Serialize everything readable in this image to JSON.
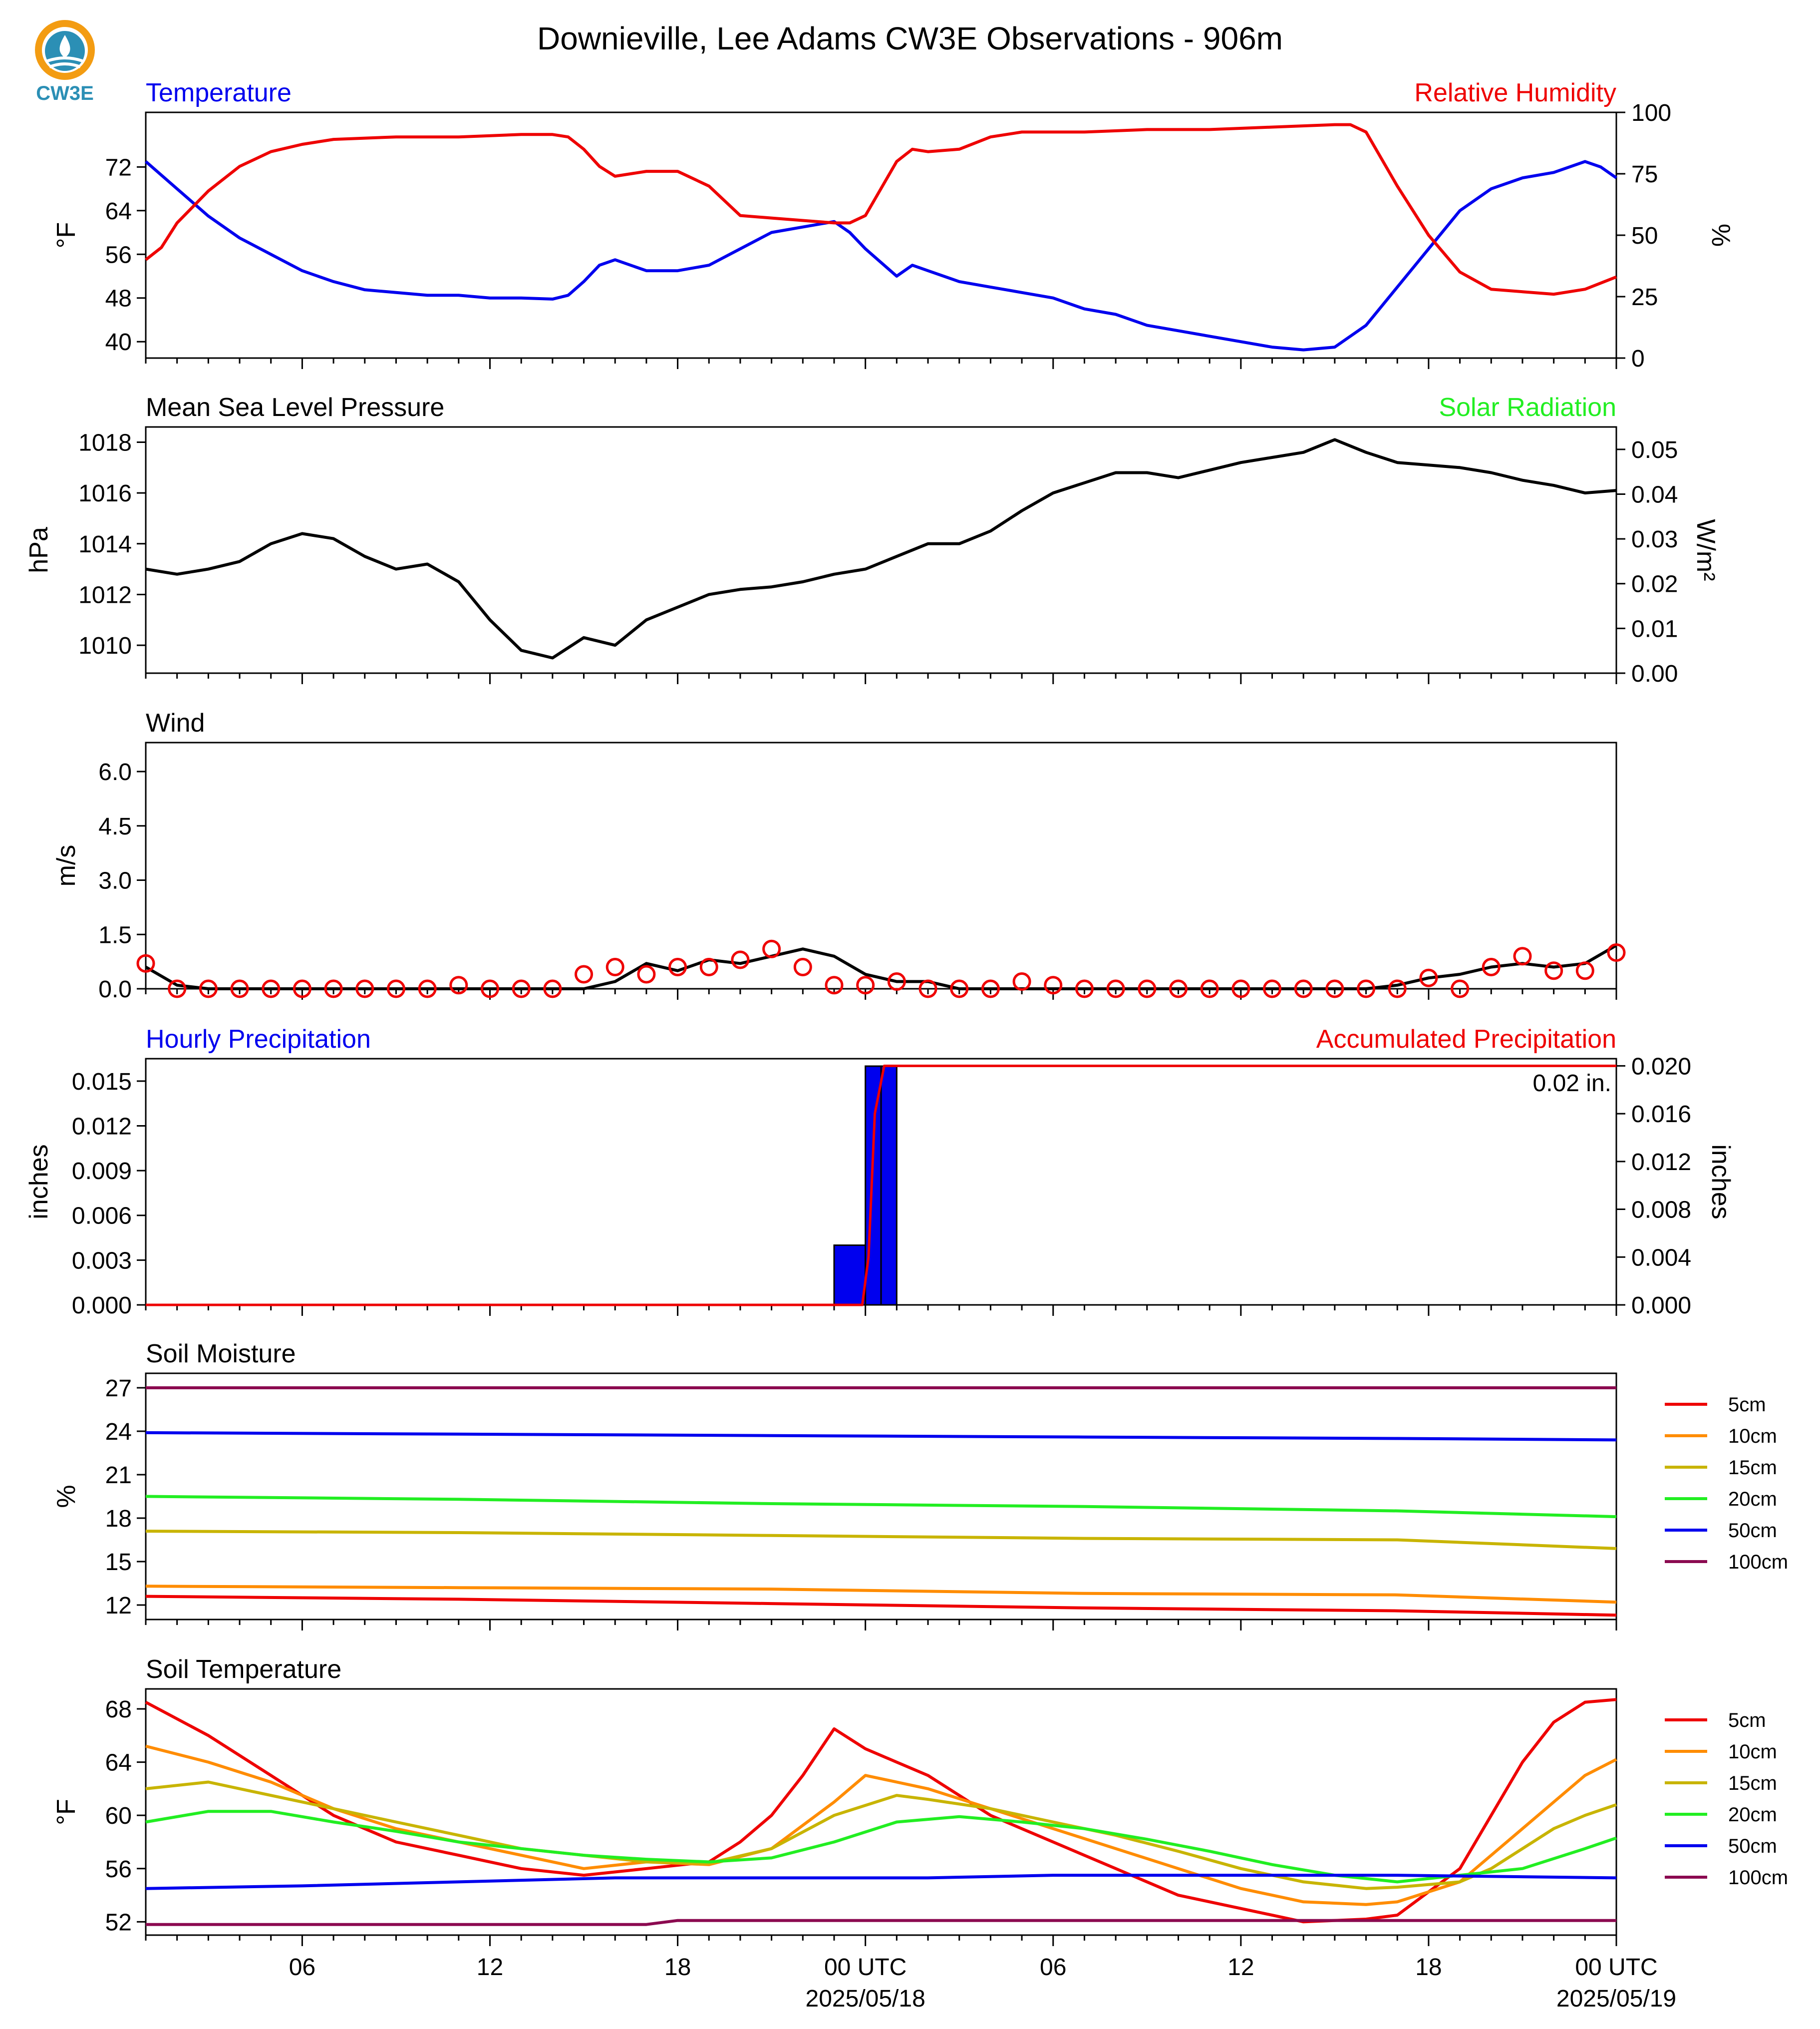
{
  "title": "Downieville, Lee Adams CW3E Observations - 906m",
  "logo_text": "CW3E",
  "colors": {
    "blue": "#0000ee",
    "red": "#ee0000",
    "green": "#22ee22",
    "black": "#000000",
    "orange": "#ff8c00",
    "olive": "#c8b400",
    "purple": "#8b0a50"
  },
  "x_ticks": [
    "06",
    "12",
    "18",
    "00 UTC",
    "06",
    "12",
    "18",
    "00 UTC"
  ],
  "x_dates": [
    "2025/05/18",
    "2025/05/19"
  ],
  "chart_data": [
    {
      "type": "line",
      "title_left": "Temperature",
      "title_right": "Relative Humidity",
      "ylabel_left": "°F",
      "ylabel_right": "%",
      "ylim_left": [
        37,
        82
      ],
      "ylim_right": [
        0,
        100
      ],
      "yticks_left": [
        40,
        48,
        56,
        64,
        72
      ],
      "yticks_right": [
        0,
        25,
        50,
        75,
        100
      ],
      "series": [
        {
          "name": "Temperature",
          "axis": "left",
          "color": "#0000ee",
          "x": [
            0,
            1,
            2,
            3,
            4,
            5,
            6,
            7,
            8,
            9,
            10,
            11,
            12,
            13,
            13.5,
            14,
            14.5,
            15,
            16,
            17,
            18,
            19,
            20,
            21,
            22,
            22.5,
            23,
            24,
            24.5,
            25,
            26,
            27,
            28,
            29,
            30,
            31,
            32,
            33,
            34,
            35,
            36,
            37,
            38,
            39,
            40,
            41,
            42,
            43,
            44,
            45,
            46,
            46.5,
            47
          ],
          "y": [
            73,
            68,
            63,
            59,
            56,
            53,
            51,
            49.5,
            49,
            48.5,
            48.5,
            48,
            48,
            47.8,
            48.5,
            51,
            54,
            55,
            53,
            53,
            54,
            57,
            60,
            61,
            62,
            60,
            57,
            52,
            54,
            53,
            51,
            50,
            49,
            48,
            46,
            45,
            43,
            42,
            41,
            40,
            39,
            38.5,
            39,
            43,
            50,
            57,
            64,
            68,
            70,
            71,
            73,
            72,
            70
          ]
        },
        {
          "name": "Relative Humidity",
          "axis": "right",
          "color": "#ee0000",
          "x": [
            0,
            0.5,
            1,
            2,
            3,
            4,
            5,
            6,
            8,
            10,
            12,
            13,
            13.5,
            14,
            14.5,
            15,
            16,
            17,
            18,
            19,
            20,
            21,
            22,
            22.5,
            23,
            24,
            24.5,
            25,
            26,
            27,
            28,
            30,
            32,
            34,
            36,
            38,
            38.5,
            39,
            40,
            41,
            42,
            43,
            44,
            45,
            46,
            47
          ],
          "y": [
            40,
            45,
            55,
            68,
            78,
            84,
            87,
            89,
            90,
            90,
            91,
            91,
            90,
            85,
            78,
            74,
            76,
            76,
            70,
            58,
            57,
            56,
            55,
            55,
            58,
            80,
            85,
            84,
            85,
            90,
            92,
            92,
            93,
            93,
            94,
            95,
            95,
            92,
            70,
            50,
            35,
            28,
            27,
            26,
            28,
            33
          ]
        }
      ]
    },
    {
      "type": "line",
      "title_left": "Mean Sea Level Pressure",
      "title_right": "Solar Radiation",
      "ylabel_left": "hPa",
      "ylabel_right": "W/m²",
      "ylim_left": [
        1008.9,
        1018.6
      ],
      "ylim_right": [
        0,
        0.055
      ],
      "yticks_left": [
        1010,
        1012,
        1014,
        1016,
        1018
      ],
      "yticks_right": [
        "0.00",
        "0.01",
        "0.02",
        "0.03",
        "0.04",
        "0.05"
      ],
      "series": [
        {
          "name": "Mean Sea Level Pressure",
          "axis": "left",
          "color": "#000000",
          "x": [
            0,
            1,
            2,
            3,
            4,
            5,
            6,
            7,
            8,
            9,
            10,
            11,
            12,
            13,
            14,
            15,
            16,
            17,
            18,
            19,
            20,
            21,
            22,
            23,
            24,
            25,
            26,
            27,
            28,
            29,
            30,
            31,
            32,
            33,
            34,
            35,
            36,
            37,
            38,
            39,
            40,
            41,
            42,
            43,
            44,
            45,
            46,
            47
          ],
          "y": [
            1013,
            1012.8,
            1013,
            1013.3,
            1014,
            1014.4,
            1014.2,
            1013.5,
            1013,
            1013.2,
            1012.5,
            1011,
            1009.8,
            1009.5,
            1010.3,
            1010,
            1011,
            1011.5,
            1012,
            1012.2,
            1012.3,
            1012.5,
            1012.8,
            1013,
            1013.5,
            1014,
            1014,
            1014.5,
            1015.3,
            1016,
            1016.4,
            1016.8,
            1016.8,
            1016.6,
            1016.9,
            1017.2,
            1017.4,
            1017.6,
            1018.1,
            1017.6,
            1017.2,
            1017.1,
            1017,
            1016.8,
            1016.5,
            1016.3,
            1016,
            1016.1
          ]
        }
      ]
    },
    {
      "type": "line",
      "title_left": "Wind",
      "ylabel_left": "m/s",
      "ylim_left": [
        0,
        6.8
      ],
      "yticks_left": [
        "0.0",
        "1.5",
        "3.0",
        "4.5",
        "6.0"
      ],
      "series": [
        {
          "name": "Wind speed",
          "axis": "left",
          "color": "#000000",
          "x": [
            0,
            1,
            2,
            3,
            4,
            5,
            6,
            7,
            8,
            9,
            10,
            11,
            12,
            13,
            14,
            15,
            16,
            17,
            18,
            19,
            20,
            21,
            22,
            23,
            24,
            25,
            26,
            27,
            28,
            29,
            30,
            31,
            32,
            33,
            34,
            35,
            36,
            37,
            38,
            39,
            40,
            41,
            42,
            43,
            44,
            45,
            46,
            47
          ],
          "y": [
            0.6,
            0.1,
            0,
            0,
            0,
            0,
            0,
            0,
            0,
            0,
            0,
            0,
            0,
            0,
            0,
            0.2,
            0.7,
            0.5,
            0.8,
            0.7,
            0.9,
            1.1,
            0.9,
            0.4,
            0.2,
            0.2,
            0,
            0,
            0,
            0,
            0,
            0,
            0,
            0,
            0,
            0,
            0,
            0,
            0,
            0,
            0.1,
            0.3,
            0.4,
            0.6,
            0.7,
            0.6,
            0.7,
            1.2
          ]
        },
        {
          "name": "Wind markers",
          "axis": "left",
          "color": "#ee0000",
          "x": [
            0,
            1,
            2,
            3,
            4,
            5,
            6,
            7,
            8,
            9,
            10,
            11,
            12,
            13,
            14,
            15,
            16,
            17,
            18,
            19,
            20,
            21,
            22,
            23,
            24,
            25,
            26,
            27,
            28,
            29,
            30,
            31,
            32,
            33,
            34,
            35,
            36,
            37,
            38,
            39,
            40,
            41,
            42,
            43,
            44,
            45,
            46,
            47
          ],
          "y": [
            0.7,
            0,
            0,
            0,
            0,
            0,
            0,
            0,
            0,
            0,
            0.1,
            0,
            0,
            0,
            0.4,
            0.6,
            0.4,
            0.6,
            0.6,
            0.8,
            1.1,
            0.6,
            0.1,
            0.1,
            0.2,
            0,
            0,
            0,
            0.2,
            0.1,
            0,
            0,
            0,
            0,
            0,
            0,
            0,
            0,
            0,
            0,
            0,
            0.3,
            0,
            0.6,
            0.9,
            0.5,
            0.5,
            1.0
          ]
        }
      ]
    },
    {
      "type": "bar",
      "title_left": "Hourly Precipitation",
      "title_right": "Accumulated Precipitation",
      "ylabel_left": "inches",
      "ylabel_right": "inches",
      "ylim_left": [
        0,
        0.0165
      ],
      "ylim_right": [
        0,
        0.0206
      ],
      "yticks_left": [
        "0.000",
        "0.003",
        "0.006",
        "0.009",
        "0.012",
        "0.015"
      ],
      "yticks_right": [
        "0.000",
        "0.004",
        "0.008",
        "0.012",
        "0.016",
        "0.020"
      ],
      "annotation": "0.02 in.",
      "bars": [
        {
          "x0": 22,
          "x1": 23,
          "value": 0.004
        },
        {
          "x0": 23,
          "x1": 23.5,
          "value": 0.016
        },
        {
          "x0": 23.5,
          "x1": 24,
          "value": 0.016
        }
      ],
      "series": [
        {
          "name": "Accumulated Precipitation",
          "axis": "right",
          "color": "#ee0000",
          "x": [
            0,
            22.9,
            23.1,
            23.3,
            23.6,
            24,
            47
          ],
          "y": [
            0,
            0,
            0.004,
            0.016,
            0.02,
            0.02,
            0.02
          ]
        }
      ]
    },
    {
      "type": "line",
      "title_left": "Soil Moisture",
      "ylabel_left": "%",
      "ylim_left": [
        11,
        28
      ],
      "yticks_left": [
        12,
        15,
        18,
        21,
        24,
        27
      ],
      "legend": [
        "5cm",
        "10cm",
        "15cm",
        "20cm",
        "50cm",
        "100cm"
      ],
      "series": [
        {
          "name": "5cm",
          "color": "#ee0000",
          "x": [
            0,
            10,
            20,
            30,
            40,
            47
          ],
          "y": [
            12.6,
            12.4,
            12.1,
            11.8,
            11.6,
            11.3
          ]
        },
        {
          "name": "10cm",
          "color": "#ff8c00",
          "x": [
            0,
            10,
            20,
            30,
            40,
            47
          ],
          "y": [
            13.3,
            13.2,
            13.1,
            12.8,
            12.7,
            12.2
          ]
        },
        {
          "name": "15cm",
          "color": "#c8b400",
          "x": [
            0,
            10,
            20,
            30,
            40,
            47
          ],
          "y": [
            17.1,
            17.0,
            16.8,
            16.6,
            16.5,
            15.9
          ]
        },
        {
          "name": "20cm",
          "color": "#22ee22",
          "x": [
            0,
            10,
            20,
            30,
            40,
            47
          ],
          "y": [
            19.5,
            19.3,
            19.0,
            18.8,
            18.5,
            18.1
          ]
        },
        {
          "name": "50cm",
          "color": "#0000ee",
          "x": [
            0,
            10,
            20,
            30,
            40,
            47
          ],
          "y": [
            23.9,
            23.8,
            23.7,
            23.6,
            23.5,
            23.4
          ]
        },
        {
          "name": "100cm",
          "color": "#8b0a50",
          "x": [
            0,
            47
          ],
          "y": [
            27,
            27
          ]
        }
      ]
    },
    {
      "type": "line",
      "title_left": "Soil Temperature",
      "ylabel_left": "°F",
      "ylim_left": [
        51,
        69.5
      ],
      "yticks_left": [
        52,
        56,
        60,
        64,
        68
      ],
      "legend": [
        "5cm",
        "10cm",
        "15cm",
        "20cm",
        "50cm",
        "100cm"
      ],
      "series": [
        {
          "name": "5cm",
          "color": "#ee0000",
          "x": [
            0,
            2,
            4,
            6,
            8,
            10,
            12,
            14,
            16,
            18,
            19,
            20,
            21,
            22,
            23,
            24,
            25,
            27,
            29,
            31,
            33,
            35,
            37,
            39,
            40,
            42,
            43,
            44,
            45,
            46,
            47
          ],
          "y": [
            68.5,
            66,
            63,
            60,
            58,
            57,
            56,
            55.5,
            56,
            56.5,
            58,
            60,
            63,
            66.5,
            65,
            64,
            63,
            60,
            58,
            56,
            54,
            53,
            52,
            52.2,
            52.5,
            56,
            60,
            64,
            67,
            68.5,
            68.7
          ]
        },
        {
          "name": "10cm",
          "color": "#ff8c00",
          "x": [
            0,
            2,
            4,
            6,
            8,
            10,
            12,
            14,
            16,
            18,
            20,
            22,
            23,
            24,
            25,
            27,
            29,
            31,
            33,
            35,
            37,
            39,
            40,
            42,
            43,
            44,
            45,
            46,
            47
          ],
          "y": [
            65.2,
            64,
            62.5,
            60.5,
            59,
            58,
            57,
            56,
            56.5,
            56.3,
            57.5,
            61,
            63,
            62.5,
            62,
            60.5,
            59,
            57.5,
            56,
            54.5,
            53.5,
            53.3,
            53.5,
            55,
            57,
            59,
            61,
            63,
            64.2
          ]
        },
        {
          "name": "15cm",
          "color": "#c8b400",
          "x": [
            0,
            2,
            4,
            6,
            8,
            10,
            12,
            14,
            16,
            18,
            20,
            22,
            24,
            25,
            27,
            29,
            31,
            33,
            35,
            37,
            39,
            40,
            42,
            43,
            44,
            45,
            46,
            47
          ],
          "y": [
            62,
            62.5,
            61.5,
            60.5,
            59.5,
            58.5,
            57.5,
            57,
            56.5,
            56.4,
            57.5,
            60,
            61.5,
            61.2,
            60.5,
            59.5,
            58.5,
            57.3,
            56,
            55,
            54.5,
            54.6,
            55,
            56,
            57.5,
            59,
            60,
            60.8
          ]
        },
        {
          "name": "20cm",
          "color": "#22ee22",
          "x": [
            0,
            2,
            4,
            6,
            8,
            10,
            12,
            14,
            16,
            18,
            20,
            22,
            24,
            26,
            28,
            30,
            32,
            34,
            36,
            38,
            40,
            42,
            44,
            46,
            47
          ],
          "y": [
            59.5,
            60.3,
            60.3,
            59.5,
            58.8,
            58,
            57.5,
            57,
            56.7,
            56.5,
            56.8,
            58,
            59.5,
            59.9,
            59.5,
            59,
            58.2,
            57.3,
            56.3,
            55.5,
            55,
            55.5,
            56,
            57.5,
            58.3
          ]
        },
        {
          "name": "50cm",
          "color": "#0000ee",
          "x": [
            0,
            5,
            10,
            15,
            20,
            25,
            29,
            35,
            40,
            47
          ],
          "y": [
            54.5,
            54.7,
            55,
            55.3,
            55.3,
            55.3,
            55.5,
            55.5,
            55.5,
            55.3
          ]
        },
        {
          "name": "100cm",
          "color": "#8b0a50",
          "x": [
            0,
            16,
            17,
            47
          ],
          "y": [
            51.8,
            51.8,
            52.1,
            52.1
          ]
        }
      ]
    }
  ]
}
